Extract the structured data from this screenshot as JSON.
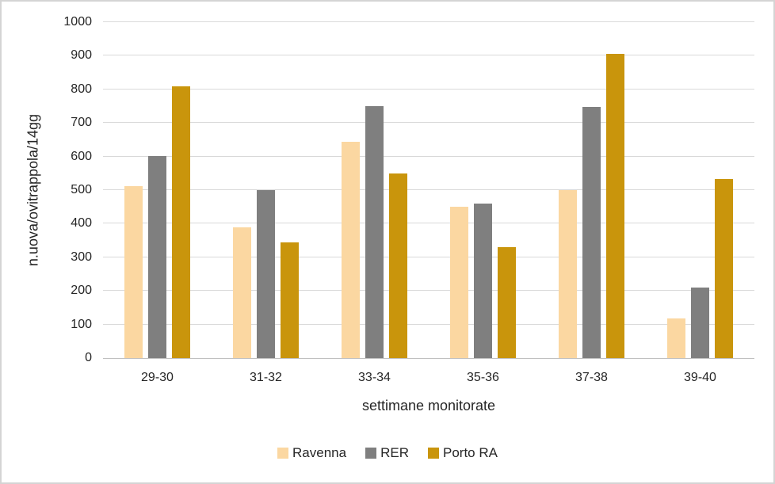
{
  "chart_data": {
    "type": "bar",
    "title": "",
    "categories": [
      "29-30",
      "31-32",
      "33-34",
      "35-36",
      "37-38",
      "39-40"
    ],
    "series": [
      {
        "name": "Ravenna",
        "color": "#FBD7A1",
        "values": [
          513,
          390,
          645,
          450,
          500,
          118
        ]
      },
      {
        "name": "RER",
        "color": "#7F7F7F",
        "values": [
          602,
          500,
          750,
          460,
          748,
          210
        ]
      },
      {
        "name": "Porto RA",
        "color": "#C9950C",
        "values": [
          810,
          345,
          550,
          330,
          905,
          533
        ]
      }
    ],
    "xlabel": "settimane monitorate",
    "ylabel": "n.uova/ovitrappola/14gg",
    "ylim": [
      0,
      1000
    ],
    "ytick_step": 100,
    "grid": true,
    "legend_position": "bottom",
    "colors": {
      "gridline": "#D9D9D9",
      "axis_line": "#BFBFBF",
      "text": "#262626",
      "background": "#FFFFFF",
      "border": "#D4D4D4"
    }
  }
}
